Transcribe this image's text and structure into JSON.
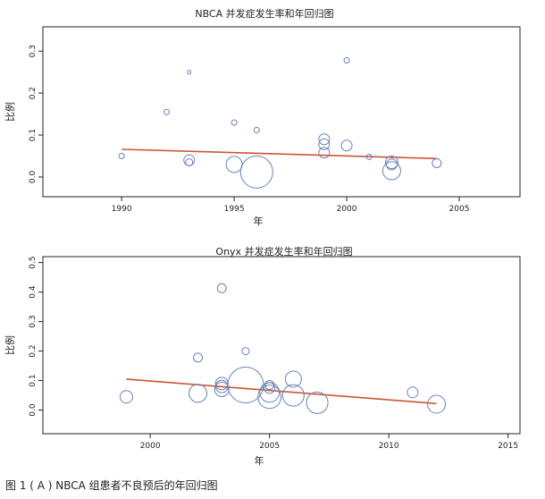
{
  "chart_data": [
    {
      "type": "scatter",
      "title": "NBCA 并发症发生率和年回归图",
      "xlabel": "年",
      "ylabel": "比例",
      "xlim": [
        1986.5,
        2007.7
      ],
      "ylim": [
        -0.047,
        0.358
      ],
      "xticks": [
        1990,
        1995,
        2000,
        2005
      ],
      "yticks": [
        0.0,
        0.1,
        0.2,
        0.3
      ],
      "xtick_labels": [
        "1990",
        "1995",
        "2000",
        "2005"
      ],
      "ytick_labels": [
        "0.0",
        "0.1",
        "0.2",
        "0.3"
      ],
      "points": [
        {
          "x": 1990,
          "y": 0.05,
          "size": 2
        },
        {
          "x": 1992,
          "y": 0.155,
          "size": 2
        },
        {
          "x": 1993,
          "y": 0.25,
          "size": 1
        },
        {
          "x": 1993,
          "y": 0.04,
          "size": 5
        },
        {
          "x": 1993,
          "y": 0.035,
          "size": 3
        },
        {
          "x": 1995,
          "y": 0.13,
          "size": 2
        },
        {
          "x": 1995,
          "y": 0.03,
          "size": 8
        },
        {
          "x": 1996,
          "y": 0.112,
          "size": 2
        },
        {
          "x": 1996,
          "y": 0.012,
          "size": 17
        },
        {
          "x": 1999,
          "y": 0.09,
          "size": 5
        },
        {
          "x": 1999,
          "y": 0.078,
          "size": 5
        },
        {
          "x": 1999,
          "y": 0.058,
          "size": 5
        },
        {
          "x": 2000,
          "y": 0.278,
          "size": 2
        },
        {
          "x": 2000,
          "y": 0.075,
          "size": 5
        },
        {
          "x": 2001,
          "y": 0.048,
          "size": 2
        },
        {
          "x": 2002,
          "y": 0.035,
          "size": 6
        },
        {
          "x": 2002,
          "y": 0.03,
          "size": 5
        },
        {
          "x": 2002,
          "y": 0.015,
          "size": 9
        },
        {
          "x": 2004,
          "y": 0.033,
          "size": 4
        }
      ],
      "regression": {
        "x": [
          1990,
          2004
        ],
        "y": [
          0.066,
          0.044
        ]
      },
      "colors": {
        "points": "#6a82b8",
        "line": "#cc5533",
        "axis": "#222222"
      }
    },
    {
      "type": "scatter",
      "title": "Onyx 并发症发生率和年回归图",
      "xlabel": "年",
      "ylabel": "比例",
      "xlim": [
        1995.5,
        2015.5
      ],
      "ylim": [
        -0.08,
        0.52
      ],
      "xticks": [
        2000,
        2005,
        2010,
        2015
      ],
      "yticks": [
        0.0,
        0.1,
        0.2,
        0.3,
        0.4,
        0.5
      ],
      "xtick_labels": [
        "2000",
        "2005",
        "2010",
        "2015"
      ],
      "ytick_labels": [
        "0.0",
        "0.1",
        "0.2",
        "0.3",
        "0.4",
        "0.5"
      ],
      "points": [
        {
          "x": 1999,
          "y": 0.045,
          "size": 6
        },
        {
          "x": 2002,
          "y": 0.178,
          "size": 4
        },
        {
          "x": 2002,
          "y": 0.057,
          "size": 9
        },
        {
          "x": 2003,
          "y": 0.413,
          "size": 4
        },
        {
          "x": 2003,
          "y": 0.09,
          "size": 6
        },
        {
          "x": 2003,
          "y": 0.08,
          "size": 6
        },
        {
          "x": 2003,
          "y": 0.07,
          "size": 7
        },
        {
          "x": 2004,
          "y": 0.2,
          "size": 3
        },
        {
          "x": 2004,
          "y": 0.085,
          "size": 19
        },
        {
          "x": 2005,
          "y": 0.085,
          "size": 4
        },
        {
          "x": 2005,
          "y": 0.075,
          "size": 5
        },
        {
          "x": 2005,
          "y": 0.06,
          "size": 10
        },
        {
          "x": 2005,
          "y": 0.045,
          "size": 12
        },
        {
          "x": 2006,
          "y": 0.105,
          "size": 8
        },
        {
          "x": 2006,
          "y": 0.05,
          "size": 11
        },
        {
          "x": 2007,
          "y": 0.025,
          "size": 11
        },
        {
          "x": 2011,
          "y": 0.06,
          "size": 5
        },
        {
          "x": 2012,
          "y": 0.02,
          "size": 9
        }
      ],
      "regression": {
        "x": [
          1999,
          2012
        ],
        "y": [
          0.105,
          0.022
        ]
      },
      "colors": {
        "points": "#6a82b8",
        "line": "#cc5533",
        "axis": "#222222"
      }
    }
  ],
  "caption": "图 1 ( A ) NBCA 组患者不良预后的年回归图"
}
